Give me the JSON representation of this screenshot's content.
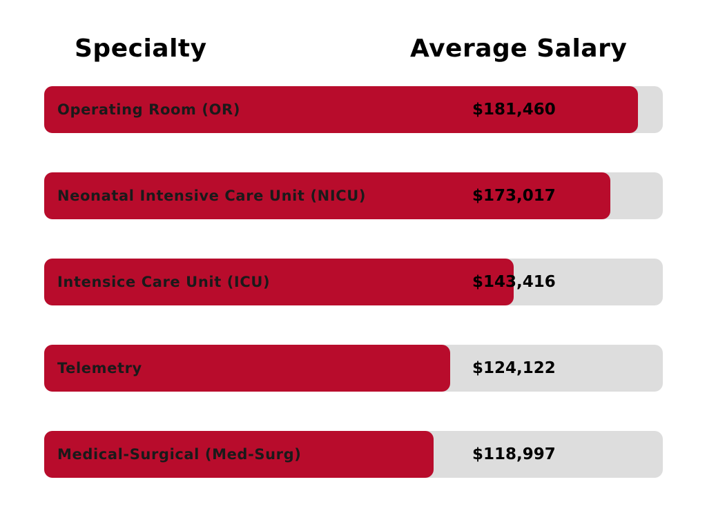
{
  "header": {
    "specialty": "Specialty",
    "salary": "Average Salary"
  },
  "colors": {
    "bar_fill": "#b80c2c",
    "bar_track": "#dddddd"
  },
  "chart_data": {
    "type": "bar",
    "orientation": "horizontal",
    "title": "",
    "xlabel": "",
    "ylabel": "",
    "categories": [
      "Operating Room (OR)",
      "Neonatal Intensive Care Unit (NICU)",
      "Intensice Care Unit (ICU)",
      "Telemetry",
      "Medical-Surgical (Med-Surg)"
    ],
    "values": [
      181460,
      173017,
      143416,
      124122,
      118997
    ],
    "value_labels": [
      "$181,460",
      "$173,017",
      "$143,416",
      "$124,122",
      "$118,997"
    ],
    "grid": false,
    "legend": "none"
  }
}
